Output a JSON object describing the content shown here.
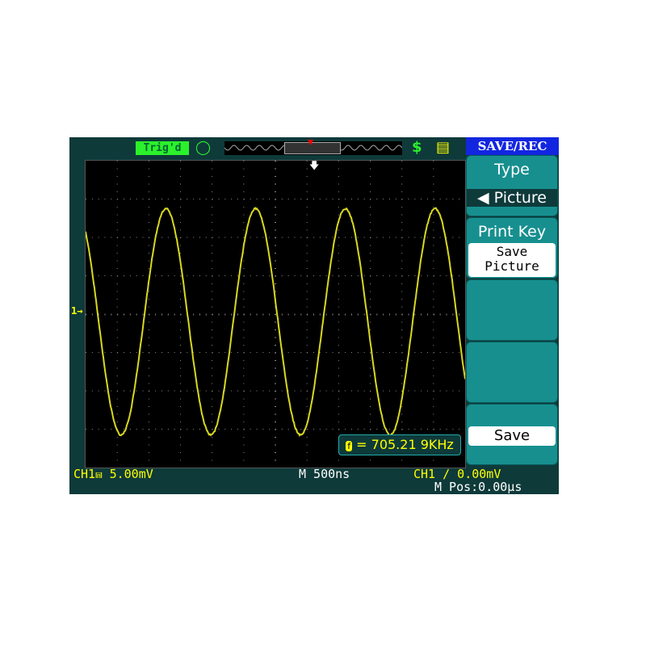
{
  "top_bar": {
    "trigger_status": "Trig'd",
    "menu_title": "SAVE/REC",
    "icons": [
      "probe-icon",
      "usb-icon",
      "printer-icon"
    ]
  },
  "menu": [
    {
      "label": "Type",
      "value": "Picture"
    },
    {
      "label": "Print Key",
      "value": "Save\nPicture"
    },
    {
      "label": "",
      "value": ""
    },
    {
      "label": "",
      "value": ""
    },
    {
      "label": "",
      "value": "Save"
    }
  ],
  "readouts": {
    "frequency": "705.21 9KHz",
    "ch1_scale": "CH1⩎ 5.00mV",
    "timebase": "M 500ns",
    "trigger": "CH1 ∕ 0.00mV",
    "m_pos": "M Pos:0.00μs",
    "ch1_marker": "1→"
  },
  "colors": {
    "ch1": "#d8d820",
    "screen": "#000000",
    "bezel": "#0e3a3a",
    "menu_button": "#178f8f",
    "title": "#1226e0"
  },
  "waveform": {
    "shape": "sine",
    "frequency_khz": 705.219,
    "time_per_div_ns": 500,
    "volts_per_div_mv": 5.0,
    "divisions": [
      12,
      8
    ],
    "amplitude_div": 2.95,
    "offset_div": -0.2
  }
}
